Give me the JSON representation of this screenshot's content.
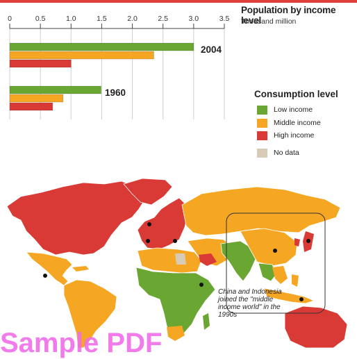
{
  "title": "Population by income level",
  "subtitle": "Thousand million",
  "chart_data": {
    "type": "bar",
    "orientation": "horizontal",
    "title": "Population by income level",
    "subtitle": "Thousand million",
    "xlim": [
      0,
      3.5
    ],
    "ticks": [
      "0",
      "0.5",
      "1.0",
      "1.5",
      "2.0",
      "2.5",
      "3.0",
      "3.5"
    ],
    "tick_values": [
      0,
      0.5,
      1.0,
      1.5,
      2.0,
      2.5,
      3.0,
      3.5
    ],
    "categories": [
      "2004",
      "1960"
    ],
    "series": [
      {
        "name": "Low income",
        "color": "#6aa632",
        "values": [
          3.0,
          1.49
        ]
      },
      {
        "name": "Middle income",
        "color": "#f5a623",
        "values": [
          2.35,
          0.87
        ]
      },
      {
        "name": "High income",
        "color": "#d93a36",
        "values": [
          1.0,
          0.7
        ]
      }
    ]
  },
  "legend": {
    "title": "Consumption level",
    "items": [
      {
        "label": "Low income",
        "color": "#6aa632"
      },
      {
        "label": "Middle income",
        "color": "#f5a623"
      },
      {
        "label": "High income",
        "color": "#d93a36"
      },
      {
        "label": "No data",
        "color": "#d8cbb5"
      }
    ]
  },
  "map": {
    "colors": {
      "low": "#6aa632",
      "middle": "#f5a623",
      "high": "#d93a36",
      "nodata": "#d8cbb5",
      "water": "#ffffff"
    },
    "annotation": "China and Indonesia joined the \"middle income world\" in the 1990s"
  },
  "watermark": "Sample PDF"
}
